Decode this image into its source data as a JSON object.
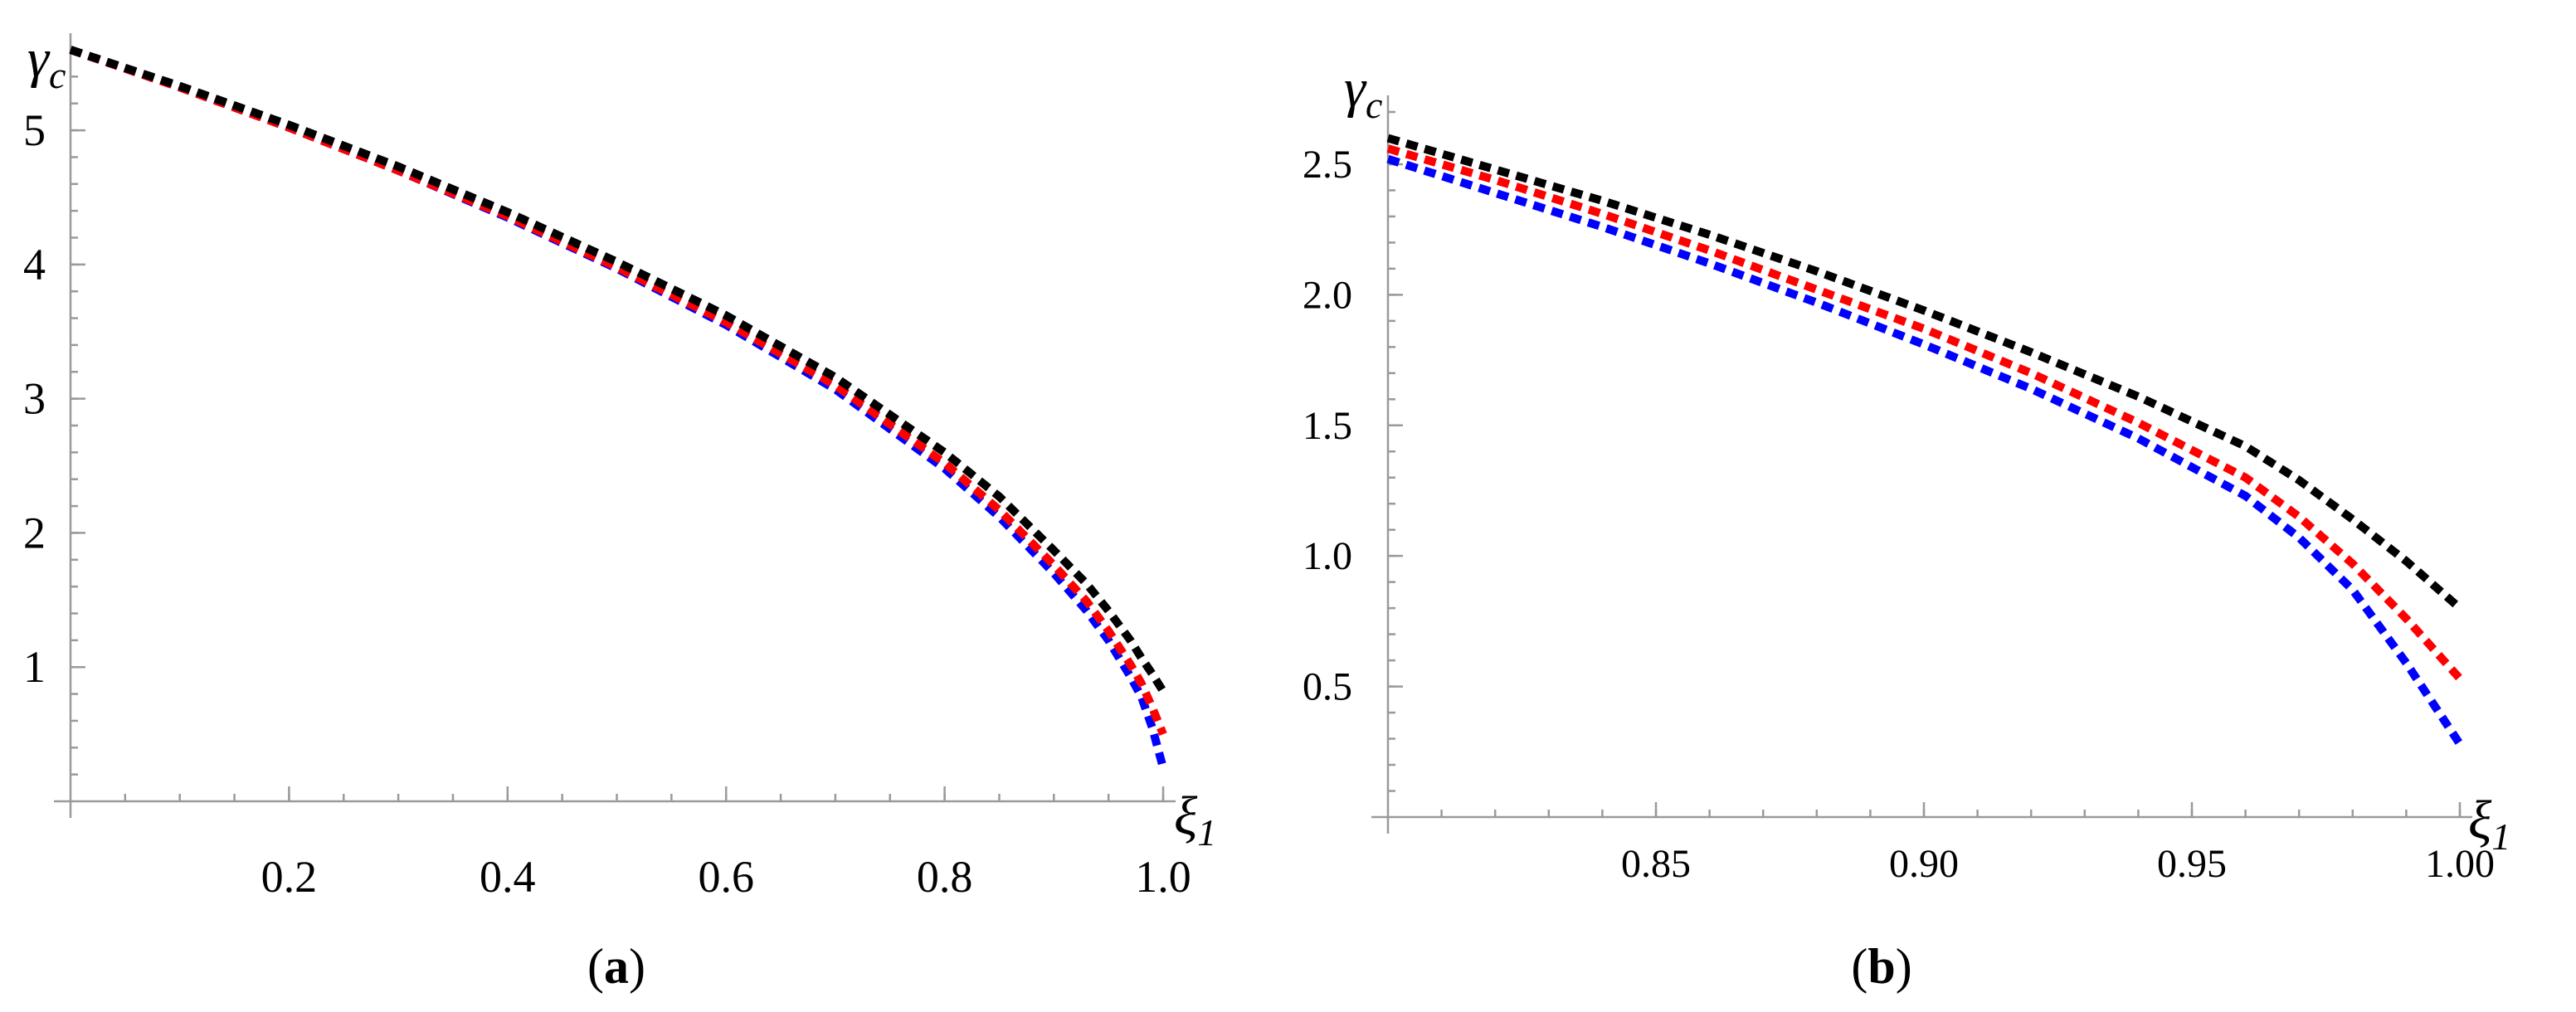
{
  "chart_data": [
    {
      "type": "line",
      "panel_label": "(a)",
      "ylabel": "γc",
      "xlabel": "ξ1",
      "xlim": [
        0.0,
        1.0
      ],
      "ylim": [
        0.0,
        5.6
      ],
      "xticks": [
        0.2,
        0.4,
        0.6,
        0.8,
        1.0
      ],
      "xtick_labels": [
        "0.2",
        "0.4",
        "0.6",
        "0.8",
        "1.0"
      ],
      "yticks": [
        1,
        2,
        3,
        4,
        5
      ],
      "ytick_labels": [
        "1",
        "2",
        "3",
        "4",
        "5"
      ],
      "grid": false,
      "series": [
        {
          "color": "#0000ff",
          "x": [
            0.0,
            0.1,
            0.2,
            0.3,
            0.4,
            0.5,
            0.6,
            0.7,
            0.8,
            0.85,
            0.9,
            0.93,
            0.95,
            0.97,
            0.98,
            0.99,
            1.0
          ],
          "y": [
            5.6,
            5.32,
            5.02,
            4.7,
            4.35,
            3.97,
            3.55,
            3.07,
            2.48,
            2.12,
            1.7,
            1.42,
            1.2,
            0.93,
            0.78,
            0.55,
            0.25
          ]
        },
        {
          "color": "#ff0000",
          "x": [
            0.0,
            0.1,
            0.2,
            0.3,
            0.4,
            0.5,
            0.6,
            0.7,
            0.8,
            0.85,
            0.9,
            0.93,
            0.95,
            0.97,
            0.98,
            0.99,
            1.0
          ],
          "y": [
            5.6,
            5.32,
            5.02,
            4.7,
            4.36,
            3.98,
            3.57,
            3.1,
            2.52,
            2.17,
            1.76,
            1.49,
            1.27,
            1.02,
            0.88,
            0.7,
            0.5
          ]
        },
        {
          "color": "#000000",
          "x": [
            0.0,
            0.1,
            0.2,
            0.3,
            0.4,
            0.5,
            0.6,
            0.7,
            0.8,
            0.85,
            0.9,
            0.93,
            0.95,
            0.97,
            0.98,
            0.99,
            1.0
          ],
          "y": [
            5.6,
            5.33,
            5.04,
            4.73,
            4.39,
            4.02,
            3.62,
            3.16,
            2.6,
            2.27,
            1.87,
            1.62,
            1.42,
            1.2,
            1.07,
            0.95,
            0.82
          ]
        }
      ]
    },
    {
      "type": "line",
      "panel_label": "(b)",
      "ylabel": "γc",
      "xlabel": "ξ1",
      "xlim": [
        0.8,
        1.0
      ],
      "ylim": [
        0.0,
        2.7
      ],
      "xticks": [
        0.85,
        0.9,
        0.95,
        1.0
      ],
      "xtick_labels": [
        "0.85",
        "0.90",
        "0.95",
        "1.00"
      ],
      "yticks": [
        0.5,
        1.0,
        1.5,
        2.0,
        2.5
      ],
      "ytick_labels": [
        "0.5",
        "1.0",
        "1.5",
        "2.0",
        "2.5"
      ],
      "grid": false,
      "series": [
        {
          "color": "#0000ff",
          "x": [
            0.8,
            0.82,
            0.84,
            0.86,
            0.88,
            0.9,
            0.92,
            0.94,
            0.96,
            0.97,
            0.98,
            0.99,
            1.0
          ],
          "y": [
            2.52,
            2.39,
            2.26,
            2.12,
            1.97,
            1.81,
            1.64,
            1.45,
            1.23,
            1.07,
            0.87,
            0.59,
            0.28
          ]
        },
        {
          "color": "#ff0000",
          "x": [
            0.8,
            0.82,
            0.84,
            0.86,
            0.88,
            0.9,
            0.92,
            0.94,
            0.96,
            0.97,
            0.98,
            0.99,
            1.0
          ],
          "y": [
            2.56,
            2.44,
            2.31,
            2.17,
            2.02,
            1.87,
            1.7,
            1.51,
            1.3,
            1.15,
            0.97,
            0.76,
            0.53
          ]
        },
        {
          "color": "#000000",
          "x": [
            0.8,
            0.82,
            0.84,
            0.86,
            0.88,
            0.9,
            0.92,
            0.94,
            0.96,
            0.97,
            0.98,
            0.99,
            1.0
          ],
          "y": [
            2.6,
            2.48,
            2.36,
            2.23,
            2.09,
            1.94,
            1.78,
            1.61,
            1.42,
            1.29,
            1.14,
            0.98,
            0.8
          ]
        }
      ]
    }
  ]
}
